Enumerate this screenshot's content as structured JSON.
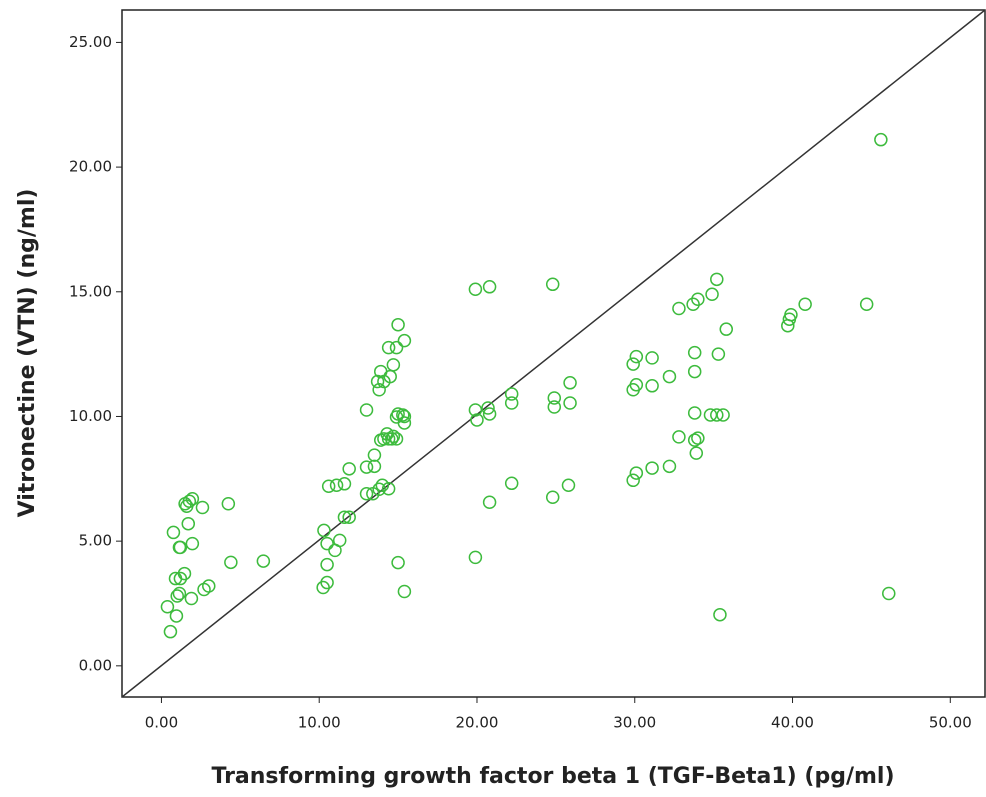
{
  "chart_data": {
    "type": "scatter",
    "xlabel": "Transforming growth factor beta 1 (TGF-Beta1) (pg/ml)",
    "ylabel": "Vitronectine (VTN) (ng/ml)",
    "color": "#3dbb3d",
    "xlim": [
      -2.5,
      52.2
    ],
    "ylim": [
      -1.25,
      26.3
    ],
    "xticks": [
      {
        "value": 0,
        "label": "0.00"
      },
      {
        "value": 10,
        "label": "10.00"
      },
      {
        "value": 20,
        "label": "20.00"
      },
      {
        "value": 30,
        "label": "30.00"
      },
      {
        "value": 40,
        "label": "40.00"
      },
      {
        "value": 50,
        "label": "50.00"
      }
    ],
    "yticks": [
      {
        "value": 0,
        "label": "0.00"
      },
      {
        "value": 5,
        "label": "5.00"
      },
      {
        "value": 10,
        "label": "10.00"
      },
      {
        "value": 15,
        "label": "15.00"
      },
      {
        "value": 20,
        "label": "20.00"
      },
      {
        "value": 25,
        "label": "25.00"
      }
    ],
    "x": [
      0.57,
      0.38,
      0.95,
      1.0,
      1.14,
      0.89,
      1.2,
      1.46,
      1.2,
      1.14,
      0.76,
      1.7,
      1.96,
      1.5,
      1.77,
      1.96,
      1.6,
      2.6,
      1.9,
      2.7,
      3.0,
      4.24,
      4.4,
      6.46,
      10.25,
      10.5,
      10.5,
      10.3,
      10.5,
      11.0,
      11.3,
      11.6,
      11.9,
      10.6,
      11.1,
      11.6,
      11.9,
      13.0,
      13.4,
      13.8,
      14.0,
      14.4,
      13.0,
      13.5,
      13.5,
      13.0,
      13.9,
      14.1,
      14.3,
      14.4,
      14.6,
      14.7,
      14.9,
      14.9,
      15.0,
      15.3,
      15.4,
      15.4,
      13.7,
      13.8,
      14.1,
      13.9,
      14.5,
      14.7,
      14.4,
      14.9,
      15.4,
      15.0,
      15.0,
      15.4,
      19.9,
      19.9,
      20.8,
      19.9,
      20.0,
      20.7,
      20.8,
      20.8,
      22.2,
      22.2,
      22.2,
      24.8,
      24.9,
      24.9,
      24.8,
      25.9,
      25.9,
      25.8,
      29.9,
      30.1,
      29.9,
      30.1,
      29.9,
      30.1,
      31.1,
      31.1,
      31.1,
      32.2,
      32.2,
      32.8,
      32.8,
      33.8,
      33.8,
      33.7,
      34.0,
      33.8,
      34.0,
      33.8,
      33.9,
      34.9,
      35.2,
      35.3,
      34.8,
      35.2,
      35.6,
      35.4,
      35.8,
      39.7,
      39.8,
      39.9,
      40.8,
      44.7,
      45.6,
      46.1
    ],
    "y": [
      1.37,
      2.37,
      2.0,
      2.8,
      2.9,
      3.5,
      3.5,
      3.7,
      4.75,
      4.75,
      5.35,
      5.7,
      4.9,
      6.5,
      6.6,
      6.7,
      6.4,
      6.35,
      2.7,
      3.06,
      3.2,
      6.5,
      4.15,
      4.2,
      3.14,
      3.34,
      4.06,
      5.43,
      4.9,
      4.63,
      5.03,
      5.96,
      5.96,
      7.2,
      7.24,
      7.3,
      7.9,
      6.9,
      6.9,
      7.08,
      7.24,
      7.1,
      7.97,
      8.0,
      8.45,
      10.26,
      9.05,
      9.1,
      9.3,
      9.1,
      9.1,
      9.2,
      9.1,
      9.98,
      10.1,
      10.06,
      9.74,
      10.0,
      11.4,
      11.07,
      11.4,
      11.8,
      11.6,
      12.07,
      12.76,
      12.76,
      13.04,
      13.68,
      4.14,
      2.98,
      4.35,
      15.1,
      15.2,
      10.26,
      9.86,
      10.34,
      10.1,
      6.56,
      10.9,
      10.54,
      7.32,
      15.3,
      10.74,
      10.38,
      6.76,
      11.35,
      10.54,
      7.24,
      12.1,
      12.4,
      11.07,
      11.27,
      7.44,
      7.73,
      12.35,
      11.23,
      7.93,
      11.6,
      8.0,
      14.33,
      9.18,
      12.56,
      11.8,
      14.5,
      14.7,
      9.05,
      9.13,
      10.14,
      8.53,
      14.9,
      15.5,
      12.5,
      10.06,
      10.06,
      10.06,
      2.05,
      13.5,
      13.64,
      13.9,
      14.08,
      14.5,
      14.5,
      21.1,
      2.9
    ]
  }
}
